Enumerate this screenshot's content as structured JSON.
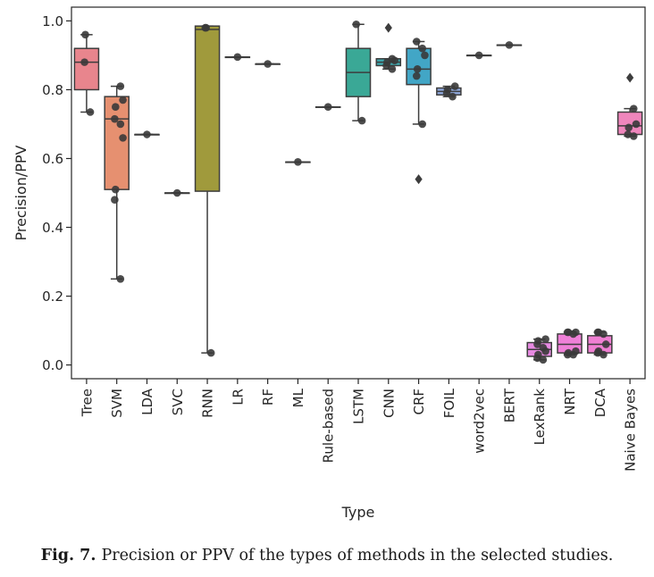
{
  "caption": {
    "label": "Fig. 7.",
    "text": "Precision or PPV of the types of methods in the selected studies."
  },
  "chart_data": {
    "type": "box",
    "title": "",
    "xlabel": "Type",
    "ylabel": "Precision/PPV",
    "ylim": [
      -0.04,
      1.04
    ],
    "yticks": [
      0.0,
      0.2,
      0.4,
      0.6,
      0.8,
      1.0
    ],
    "ytick_labels": [
      "0.0",
      "0.2",
      "0.4",
      "0.6",
      "0.8",
      "1.0"
    ],
    "grid": false,
    "legend": "none",
    "categories": [
      "Tree",
      "SVM",
      "LDA",
      "SVC",
      "RNN",
      "LR",
      "RF",
      "ML",
      "Rule-based",
      "LSTM",
      "CNN",
      "CRF",
      "FOIL",
      "word2vec",
      "BERT",
      "LexRank",
      "NRT",
      "DCA",
      "Naive Bayes"
    ],
    "colors": [
      "#e8858d",
      "#e69070",
      "#c4a05c",
      "#a6a658",
      "#a09a3c",
      "#86aa56",
      "#56b276",
      "#4cb089",
      "#46ad9a",
      "#3aa896",
      "#3fa8ae",
      "#42a6c6",
      "#8fa8dc",
      "#b6a0e2",
      "#cf96e2",
      "#e78ae2",
      "#ef80d8",
      "#ef7fd2",
      "#ef86bc"
    ],
    "boxes": [
      {
        "category": "Tree",
        "whislo": 0.735,
        "q1": 0.8,
        "med": 0.88,
        "q3": 0.92,
        "whishi": 0.96,
        "fliers": []
      },
      {
        "category": "SVM",
        "whislo": 0.25,
        "q1": 0.51,
        "med": 0.715,
        "q3": 0.78,
        "whishi": 0.81,
        "fliers": []
      },
      {
        "category": "LDA",
        "whislo": 0.67,
        "q1": 0.67,
        "med": 0.67,
        "q3": 0.67,
        "whishi": 0.67,
        "fliers": []
      },
      {
        "category": "SVC",
        "whislo": 0.5,
        "q1": 0.5,
        "med": 0.5,
        "q3": 0.5,
        "whishi": 0.5,
        "fliers": []
      },
      {
        "category": "RNN",
        "whislo": 0.035,
        "q1": 0.505,
        "med": 0.975,
        "q3": 0.985,
        "whishi": 0.985,
        "fliers": []
      },
      {
        "category": "LR",
        "whislo": 0.895,
        "q1": 0.895,
        "med": 0.895,
        "q3": 0.895,
        "whishi": 0.895,
        "fliers": []
      },
      {
        "category": "RF",
        "whislo": 0.875,
        "q1": 0.875,
        "med": 0.875,
        "q3": 0.875,
        "whishi": 0.875,
        "fliers": []
      },
      {
        "category": "ML",
        "whislo": 0.59,
        "q1": 0.59,
        "med": 0.59,
        "q3": 0.59,
        "whishi": 0.59,
        "fliers": []
      },
      {
        "category": "Rule-based",
        "whislo": 0.75,
        "q1": 0.75,
        "med": 0.75,
        "q3": 0.75,
        "whishi": 0.75,
        "fliers": []
      },
      {
        "category": "LSTM",
        "whislo": 0.71,
        "q1": 0.78,
        "med": 0.85,
        "q3": 0.92,
        "whishi": 0.99,
        "fliers": []
      },
      {
        "category": "CNN",
        "whislo": 0.86,
        "q1": 0.87,
        "med": 0.88,
        "q3": 0.89,
        "whishi": 0.89,
        "fliers": [
          0.98
        ]
      },
      {
        "category": "CRF",
        "whislo": 0.7,
        "q1": 0.815,
        "med": 0.86,
        "q3": 0.92,
        "whishi": 0.94,
        "fliers": [
          0.54
        ]
      },
      {
        "category": "FOIL",
        "whislo": 0.78,
        "q1": 0.785,
        "med": 0.795,
        "q3": 0.805,
        "whishi": 0.81,
        "fliers": []
      },
      {
        "category": "word2vec",
        "whislo": 0.9,
        "q1": 0.9,
        "med": 0.9,
        "q3": 0.9,
        "whishi": 0.9,
        "fliers": []
      },
      {
        "category": "BERT",
        "whislo": 0.93,
        "q1": 0.93,
        "med": 0.93,
        "q3": 0.93,
        "whishi": 0.93,
        "fliers": []
      },
      {
        "category": "LexRank",
        "whislo": 0.015,
        "q1": 0.025,
        "med": 0.045,
        "q3": 0.065,
        "whishi": 0.075,
        "fliers": []
      },
      {
        "category": "NRT",
        "whislo": 0.03,
        "q1": 0.035,
        "med": 0.06,
        "q3": 0.09,
        "whishi": 0.095,
        "fliers": []
      },
      {
        "category": "DCA",
        "whislo": 0.03,
        "q1": 0.035,
        "med": 0.06,
        "q3": 0.085,
        "whishi": 0.095,
        "fliers": []
      },
      {
        "category": "Naive Bayes",
        "whislo": 0.665,
        "q1": 0.67,
        "med": 0.695,
        "q3": 0.735,
        "whishi": 0.745,
        "fliers": [
          0.835
        ]
      }
    ],
    "points": [
      {
        "category": "Tree",
        "values": [
          0.735,
          0.88,
          0.96
        ]
      },
      {
        "category": "SVM",
        "values": [
          0.25,
          0.48,
          0.51,
          0.66,
          0.7,
          0.715,
          0.75,
          0.77,
          0.81
        ]
      },
      {
        "category": "LDA",
        "values": [
          0.67
        ]
      },
      {
        "category": "SVC",
        "values": [
          0.5
        ]
      },
      {
        "category": "RNN",
        "values": [
          0.035,
          0.98,
          0.98
        ]
      },
      {
        "category": "LR",
        "values": [
          0.895
        ]
      },
      {
        "category": "RF",
        "values": [
          0.875
        ]
      },
      {
        "category": "ML",
        "values": [
          0.59
        ]
      },
      {
        "category": "Rule-based",
        "values": [
          0.75
        ]
      },
      {
        "category": "LSTM",
        "values": [
          0.71,
          0.99
        ]
      },
      {
        "category": "CNN",
        "values": [
          0.86,
          0.87,
          0.88,
          0.885,
          0.89
        ]
      },
      {
        "category": "CRF",
        "values": [
          0.7,
          0.84,
          0.86,
          0.9,
          0.92,
          0.94
        ]
      },
      {
        "category": "FOIL",
        "values": [
          0.78,
          0.79,
          0.8,
          0.81
        ]
      },
      {
        "category": "word2vec",
        "values": [
          0.9
        ]
      },
      {
        "category": "BERT",
        "values": [
          0.93
        ]
      },
      {
        "category": "LexRank",
        "values": [
          0.015,
          0.02,
          0.03,
          0.04,
          0.05,
          0.06,
          0.07,
          0.075
        ]
      },
      {
        "category": "NRT",
        "values": [
          0.03,
          0.03,
          0.035,
          0.04,
          0.09,
          0.095,
          0.095,
          0.095
        ]
      },
      {
        "category": "DCA",
        "values": [
          0.03,
          0.035,
          0.04,
          0.06,
          0.09,
          0.095,
          0.095
        ]
      },
      {
        "category": "Naive Bayes",
        "values": [
          0.665,
          0.67,
          0.69,
          0.7,
          0.745
        ]
      }
    ]
  }
}
